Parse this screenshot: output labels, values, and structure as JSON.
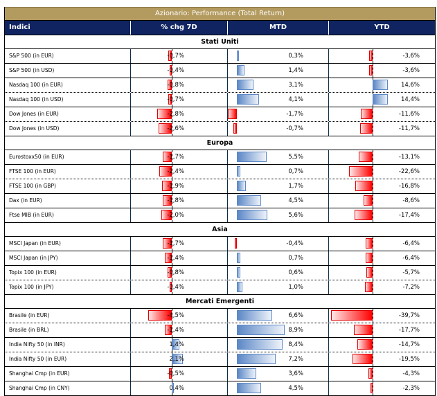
{
  "title": "Azionario: Performance (Total Return)",
  "columns": [
    "Indici",
    "% chg 7D",
    "MTD",
    "YTD"
  ],
  "colors": {
    "title_bg": "#B39A5F",
    "header_bg": "#0F2461",
    "negative": "#FF0000",
    "positive": "#5B87C6"
  },
  "sections": [
    {
      "name": "Stati Uniti",
      "rows": [
        {
          "index": "S&P 500 (in EUR)",
          "chg7d": -0.7,
          "mtd": 0.3,
          "ytd": -3.6,
          "chg7d_label": "-0,7%",
          "mtd_label": "0,3%",
          "ytd_label": "-3,6%"
        },
        {
          "index": "S&P 500 (in USD)",
          "chg7d": -0.4,
          "mtd": 1.4,
          "ytd": -3.6,
          "chg7d_label": "-0,4%",
          "mtd_label": "1,4%",
          "ytd_label": "-3,6%"
        },
        {
          "index": "Nasdaq 100 (in EUR)",
          "chg7d": -0.8,
          "mtd": 3.1,
          "ytd": 14.6,
          "chg7d_label": "-0,8%",
          "mtd_label": "3,1%",
          "ytd_label": "14,6%"
        },
        {
          "index": "Nasdaq 100 (in USD)",
          "chg7d": -0.7,
          "mtd": 4.1,
          "ytd": 14.4,
          "chg7d_label": "-0,7%",
          "mtd_label": "4,1%",
          "ytd_label": "14,4%"
        },
        {
          "index": "Dow Jones (in EUR)",
          "chg7d": -2.8,
          "mtd": -1.7,
          "ytd": -11.6,
          "chg7d_label": "-2,8%",
          "mtd_label": "-1,7%",
          "ytd_label": "-11,6%"
        },
        {
          "index": "Dow Jones (in USD)",
          "chg7d": -2.6,
          "mtd": -0.7,
          "ytd": -11.7,
          "chg7d_label": "-2,6%",
          "mtd_label": "-0,7%",
          "ytd_label": "-11,7%"
        }
      ]
    },
    {
      "name": "Europa",
      "rows": [
        {
          "index": "Eurostoxx50 (in EUR)",
          "chg7d": -1.7,
          "mtd": 5.5,
          "ytd": -13.1,
          "chg7d_label": "-1,7%",
          "mtd_label": "5,5%",
          "ytd_label": "-13,1%"
        },
        {
          "index": "FTSE 100 (in EUR)",
          "chg7d": -2.4,
          "mtd": 0.7,
          "ytd": -22.6,
          "chg7d_label": "-2,4%",
          "mtd_label": "0,7%",
          "ytd_label": "-22,6%"
        },
        {
          "index": "FTSE 100 (in GBP)",
          "chg7d": -1.9,
          "mtd": 1.7,
          "ytd": -16.8,
          "chg7d_label": "-1,9%",
          "mtd_label": "1,7%",
          "ytd_label": "-16,8%"
        },
        {
          "index": "Dax (in EUR)",
          "chg7d": -1.8,
          "mtd": 4.5,
          "ytd": -8.6,
          "chg7d_label": "-1,8%",
          "mtd_label": "4,5%",
          "ytd_label": "-8,6%"
        },
        {
          "index": "Ftse MIB (in EUR)",
          "chg7d": -2.0,
          "mtd": 5.6,
          "ytd": -17.4,
          "chg7d_label": "-2,0%",
          "mtd_label": "5,6%",
          "ytd_label": "-17,4%"
        }
      ]
    },
    {
      "name": "Asia",
      "rows": [
        {
          "index": "MSCI Japan (in EUR)",
          "chg7d": -1.7,
          "mtd": -0.4,
          "ytd": -6.4,
          "chg7d_label": "-1,7%",
          "mtd_label": "-0,4%",
          "ytd_label": "-6,4%"
        },
        {
          "index": "MSCI Japan (in JPY)",
          "chg7d": -1.4,
          "mtd": 0.7,
          "ytd": -6.4,
          "chg7d_label": "-1,4%",
          "mtd_label": "0,7%",
          "ytd_label": "-6,4%"
        },
        {
          "index": "Topix 100 (in EUR)",
          "chg7d": -0.8,
          "mtd": 0.6,
          "ytd": -5.7,
          "chg7d_label": "-0,8%",
          "mtd_label": "0,6%",
          "ytd_label": "-5,7%"
        },
        {
          "index": "Topix 100 (in JPY)",
          "chg7d": -0.4,
          "mtd": 1.0,
          "ytd": -7.2,
          "chg7d_label": "-0,4%",
          "mtd_label": "1,0%",
          "ytd_label": "-7,2%"
        }
      ]
    },
    {
      "name": "Mercati Emergenti",
      "rows": [
        {
          "index": "Brasile (in EUR)",
          "chg7d": -4.5,
          "mtd": 6.6,
          "ytd": -39.7,
          "chg7d_label": "-4,5%",
          "mtd_label": "6,6%",
          "ytd_label": "-39,7%"
        },
        {
          "index": "Brasile (in BRL)",
          "chg7d": -1.4,
          "mtd": 8.9,
          "ytd": -17.7,
          "chg7d_label": "-1,4%",
          "mtd_label": "8,9%",
          "ytd_label": "-17,7%"
        },
        {
          "index": "India Nifty 50 (in INR)",
          "chg7d": 1.4,
          "mtd": 8.4,
          "ytd": -14.7,
          "chg7d_label": "1,4%",
          "mtd_label": "8,4%",
          "ytd_label": "-14,7%"
        },
        {
          "index": "India Nifty 50 (in EUR)",
          "chg7d": 2.1,
          "mtd": 7.2,
          "ytd": -19.5,
          "chg7d_label": "2,1%",
          "mtd_label": "7,2%",
          "ytd_label": "-19,5%"
        },
        {
          "index": "Shanghai Cmp (in EUR)",
          "chg7d": -0.5,
          "mtd": 3.6,
          "ytd": -4.3,
          "chg7d_label": "-0,5%",
          "mtd_label": "3,6%",
          "ytd_label": "-4,3%"
        },
        {
          "index": "Shanghai Cmp (in CNY)",
          "chg7d": 0.4,
          "mtd": 4.5,
          "ytd": -2.3,
          "chg7d_label": "0,4%",
          "mtd_label": "4,5%",
          "ytd_label": "-2,3%"
        }
      ]
    }
  ]
}
